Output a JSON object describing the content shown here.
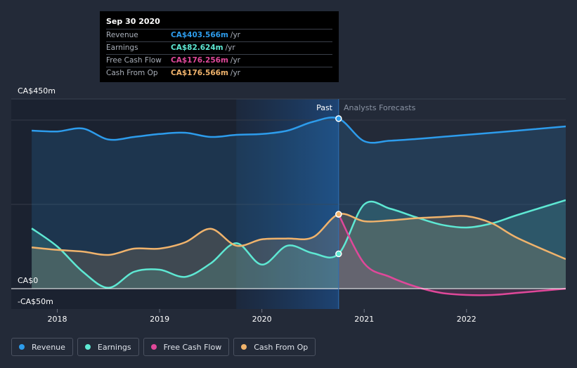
{
  "chart_data": {
    "type": "line",
    "title": "",
    "xlabel": "",
    "ylabel": "",
    "x_tick_labels": [
      "2018",
      "2019",
      "2020",
      "2021",
      "2022"
    ],
    "x_ticks": [
      2018.0,
      2019.0,
      2020.0,
      2021.0,
      2022.0
    ],
    "xlim": [
      2017.55,
      2022.97
    ],
    "ylim": [
      -50,
      450
    ],
    "y_tick_labels": [
      "CA$450m",
      "CA$0",
      "-CA$50m"
    ],
    "past_label": "Past",
    "forecast_label": "Analysts Forecasts",
    "divider_x": 2020.75,
    "highlight_range": [
      2019.75,
      2020.75
    ],
    "series": [
      {
        "name": "Revenue",
        "color": "#2d9cec",
        "x": [
          2017.75,
          2018.0,
          2018.25,
          2018.5,
          2018.75,
          2019.0,
          2019.25,
          2019.5,
          2019.75,
          2020.0,
          2020.25,
          2020.5,
          2020.75,
          2021.0,
          2021.25,
          2021.5,
          2021.75,
          2022.0,
          2022.5,
          2022.97
        ],
        "values": [
          375,
          373,
          380,
          354,
          360,
          367,
          370,
          360,
          365,
          367,
          375,
          396,
          403.566,
          350,
          351,
          355,
          360,
          365,
          375,
          385
        ]
      },
      {
        "name": "Earnings",
        "color": "#5ee8d3",
        "x": [
          2017.75,
          2018.0,
          2018.25,
          2018.5,
          2018.75,
          2019.0,
          2019.25,
          2019.5,
          2019.75,
          2020.0,
          2020.25,
          2020.5,
          2020.75,
          2021.0,
          2021.25,
          2021.5,
          2021.75,
          2022.0,
          2022.25,
          2022.5,
          2022.97
        ],
        "values": [
          143,
          100,
          40,
          2,
          40,
          45,
          28,
          60,
          108,
          57,
          102,
          84,
          82.624,
          200,
          190,
          170,
          152,
          145,
          155,
          175,
          210
        ]
      },
      {
        "name": "Free Cash Flow",
        "color": "#e0489a",
        "x": [
          2020.75,
          2021.0,
          2021.25,
          2021.5,
          2021.75,
          2022.0,
          2022.25,
          2022.5,
          2022.97
        ],
        "values": [
          176.256,
          60,
          28,
          5,
          -10,
          -15,
          -15,
          -10,
          0
        ]
      },
      {
        "name": "Cash From Op",
        "color": "#f0b36c",
        "x": [
          2017.75,
          2018.0,
          2018.25,
          2018.5,
          2018.75,
          2019.0,
          2019.25,
          2019.5,
          2019.75,
          2020.0,
          2020.25,
          2020.5,
          2020.75,
          2021.0,
          2021.25,
          2021.5,
          2021.75,
          2022.0,
          2022.25,
          2022.5,
          2022.97
        ],
        "values": [
          98,
          92,
          88,
          80,
          95,
          95,
          110,
          142,
          102,
          117,
          119,
          122,
          176.566,
          160,
          162,
          167,
          170,
          172,
          155,
          120,
          70
        ]
      }
    ]
  },
  "tooltip": {
    "date": "Sep 30 2020",
    "rows": [
      {
        "label": "Revenue",
        "value": "CA$403.566m",
        "unit": "/yr",
        "color": "#2d9cec"
      },
      {
        "label": "Earnings",
        "value": "CA$82.624m",
        "unit": "/yr",
        "color": "#5ee8d3"
      },
      {
        "label": "Free Cash Flow",
        "value": "CA$176.256m",
        "unit": "/yr",
        "color": "#e0489a"
      },
      {
        "label": "Cash From Op",
        "value": "CA$176.566m",
        "unit": "/yr",
        "color": "#f0b36c"
      }
    ]
  },
  "legend": [
    {
      "label": "Revenue",
      "color": "#2d9cec"
    },
    {
      "label": "Earnings",
      "color": "#5ee8d3"
    },
    {
      "label": "Free Cash Flow",
      "color": "#e0489a"
    },
    {
      "label": "Cash From Op",
      "color": "#f0b36c"
    }
  ]
}
